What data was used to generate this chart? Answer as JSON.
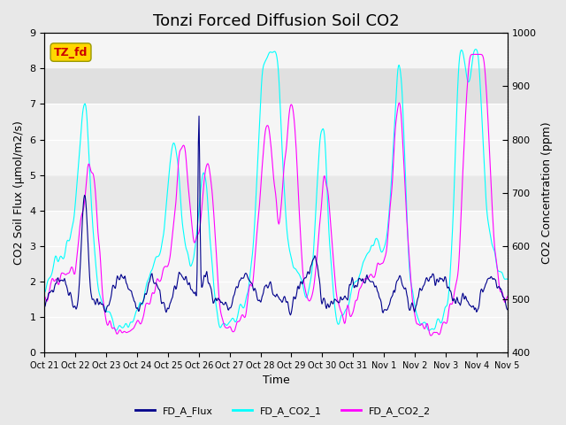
{
  "title": "Tonzi Forced Diffusion Soil CO2",
  "xlabel": "Time",
  "ylabel_left": "CO2 Soil Flux (μmol/m2/s)",
  "ylabel_right": "CO2 Concentration (ppm)",
  "ylim_left": [
    0.0,
    9.0
  ],
  "ylim_right": [
    400,
    1000
  ],
  "xtick_labels": [
    "Oct 21",
    "Oct 22",
    "Oct 23",
    "Oct 24",
    "Oct 25",
    "Oct 26",
    "Oct 27",
    "Oct 28",
    "Oct 29",
    "Oct 30",
    "Oct 31",
    "Nov 1",
    "Nov 2",
    "Nov 3",
    "Nov 4",
    "Nov 5"
  ],
  "color_flux": "#00008B",
  "color_co2_1": "#00FFFF",
  "color_co2_2": "#FF00FF",
  "legend_label_flux": "FD_A_Flux",
  "legend_label_co2_1": "FD_A_CO2_1",
  "legend_label_co2_2": "FD_A_CO2_2",
  "box_label": "TZ_fd",
  "box_color_bg": "#FFD700",
  "box_color_text": "#CC0000",
  "background_color": "#E8E8E8",
  "plot_bg_color": "#F5F5F5",
  "title_fontsize": 13,
  "axis_fontsize": 9,
  "tick_fontsize": 8
}
